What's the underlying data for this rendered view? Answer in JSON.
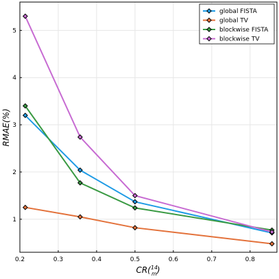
{
  "chart_data": {
    "type": "line",
    "xlabel": "CR(¹⁴⁄ₘ)",
    "ylabel": "RMAE(%)",
    "xlim": [
      0.2,
      0.87
    ],
    "ylim": [
      0.3,
      5.6
    ],
    "x_ticks": [
      0.2,
      0.3,
      0.4,
      0.5,
      0.6,
      0.7,
      0.8
    ],
    "y_ticks": [
      1,
      2,
      3,
      4,
      5
    ],
    "grid": true,
    "legend_position": "top-right",
    "marker": "diamond",
    "series": [
      {
        "name": "global FISTA",
        "color": "#1f9be5",
        "x": [
          0.214,
          0.357,
          0.5,
          0.857
        ],
        "y": [
          3.2,
          2.04,
          1.37,
          0.71
        ]
      },
      {
        "name": "global TV",
        "color": "#e3713a",
        "x": [
          0.214,
          0.357,
          0.5,
          0.857
        ],
        "y": [
          1.25,
          1.05,
          0.82,
          0.48
        ]
      },
      {
        "name": "blockwise FISTA",
        "color": "#3a9a43",
        "x": [
          0.214,
          0.357,
          0.5,
          0.857
        ],
        "y": [
          3.4,
          1.77,
          1.24,
          0.77
        ]
      },
      {
        "name": "blockwise TV",
        "color": "#c76bd2",
        "x": [
          0.214,
          0.357,
          0.5,
          0.857
        ],
        "y": [
          5.3,
          2.74,
          1.5,
          0.73
        ]
      }
    ]
  }
}
